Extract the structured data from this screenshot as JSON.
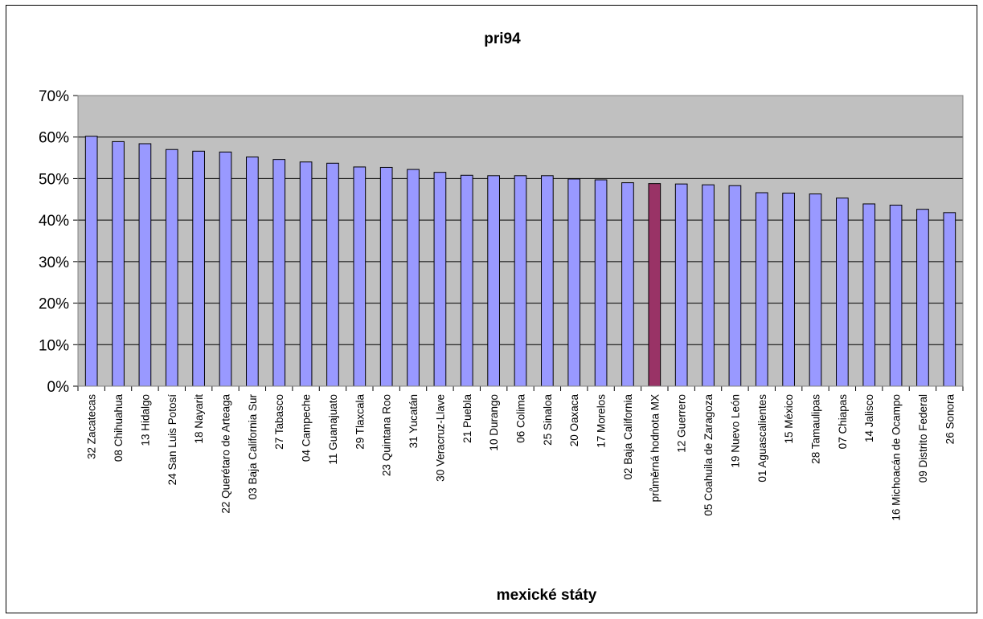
{
  "chart_data": {
    "type": "bar",
    "title": "pri94",
    "xlabel": "mexické státy",
    "ylabel": "",
    "ylim": [
      0,
      70
    ],
    "ytick_step": 10,
    "ytick_suffix": "%",
    "grid": true,
    "plot_background": "#c0c0c0",
    "bar_color": "#9999ff",
    "highlight_color": "#993366",
    "highlight_category": "průměrná hodnota MX",
    "categories": [
      "32 Zacatecas",
      "08 Chihuahua",
      "13 Hidalgo",
      "24 San Luis Potosí",
      "18 Nayarit",
      "22 Querétaro de Arteaga",
      "03 Baja California Sur",
      "27 Tabasco",
      "04 Campeche",
      "11 Guanajuato",
      "29 Tlaxcala",
      "23 Quintana Roo",
      "31 Yucatán",
      "30 Veracruz-Llave",
      "21 Puebla",
      "10 Durango",
      "06 Colima",
      "25 Sinaloa",
      "20 Oaxaca",
      "17 Morelos",
      "02 Baja California",
      "průměrná hodnota MX",
      "12 Guerrero",
      "05 Coahuila de Zaragoza",
      "19 Nuevo León",
      "01 Aguascalientes",
      "15 México",
      "28 Tamaulipas",
      "07 Chiapas",
      "14 Jalisco",
      "16 Michoacán de Ocampo",
      "09 Distrito Federal",
      "26 Sonora"
    ],
    "values": [
      60.2,
      58.9,
      58.4,
      57.0,
      56.6,
      56.4,
      55.2,
      54.6,
      54.0,
      53.7,
      52.8,
      52.7,
      52.2,
      51.5,
      50.8,
      50.7,
      50.7,
      50.7,
      49.9,
      49.7,
      49.0,
      48.8,
      48.7,
      48.5,
      48.3,
      46.6,
      46.5,
      46.3,
      45.3,
      43.9,
      43.6,
      42.6,
      41.8
    ]
  }
}
